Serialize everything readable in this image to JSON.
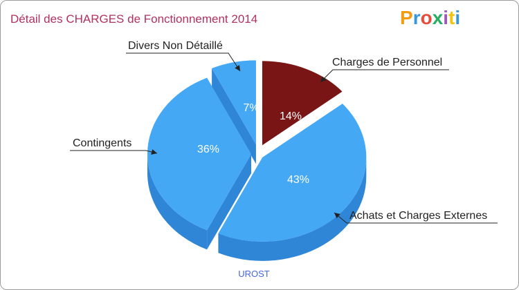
{
  "chart_data": {
    "type": "pie",
    "title": "Détail des CHARGES de Fonctionnement 2014",
    "slices": [
      {
        "label": "Charges de Personnel",
        "value": 14,
        "pct_label": "14%",
        "color": "#7a1515",
        "side_color": "#5a0c0c"
      },
      {
        "label": "Achats et Charges Externes",
        "value": 43,
        "pct_label": "43%",
        "color": "#45a8f5",
        "side_color": "#2f86d6"
      },
      {
        "label": "Contingents",
        "value": 36,
        "pct_label": "36%",
        "color": "#45a8f5",
        "side_color": "#2f86d6"
      },
      {
        "label": "Divers Non Détaillé",
        "value": 7,
        "pct_label": "7%",
        "color": "#45a8f5",
        "side_color": "#2f86d6"
      }
    ],
    "commune": "UROST"
  },
  "brand": {
    "logo_letters": [
      "P",
      "r",
      "o",
      "x",
      "i",
      "t",
      "i"
    ],
    "logo_colors": [
      "#f39c12",
      "#3498db",
      "#e74c3c",
      "#27ae60",
      "#9b59b6",
      "#f1c40f",
      "#3498db"
    ]
  },
  "colors": {
    "title": "#b03060",
    "commune": "#4466dd"
  }
}
